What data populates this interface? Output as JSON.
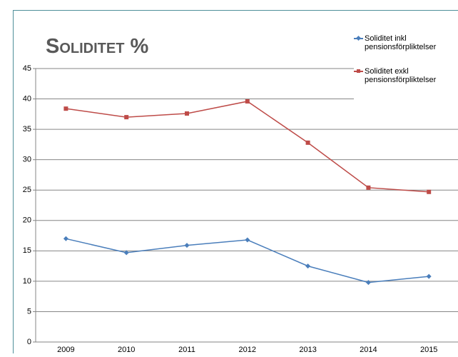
{
  "chart_data": {
    "type": "line",
    "title": "Soliditet %",
    "categories": [
      "2009",
      "2010",
      "2011",
      "2012",
      "2013",
      "2014",
      "2015"
    ],
    "series": [
      {
        "name": "Soliditet inkl pensionsförpliktelser",
        "color": "#4a7ebb",
        "marker": "diamond",
        "values": [
          17.0,
          14.7,
          15.9,
          16.8,
          12.5,
          9.8,
          10.8
        ]
      },
      {
        "name": "Soliditet exkl pensionsförpliktelser",
        "color": "#be4b48",
        "marker": "square",
        "values": [
          38.4,
          37.0,
          37.6,
          39.6,
          32.8,
          25.4,
          24.7
        ]
      }
    ],
    "ylim": [
      0,
      45
    ],
    "yticks": [
      0,
      5,
      10,
      15,
      20,
      25,
      30,
      35,
      40,
      45
    ],
    "grid": true,
    "legend": "top-right"
  }
}
